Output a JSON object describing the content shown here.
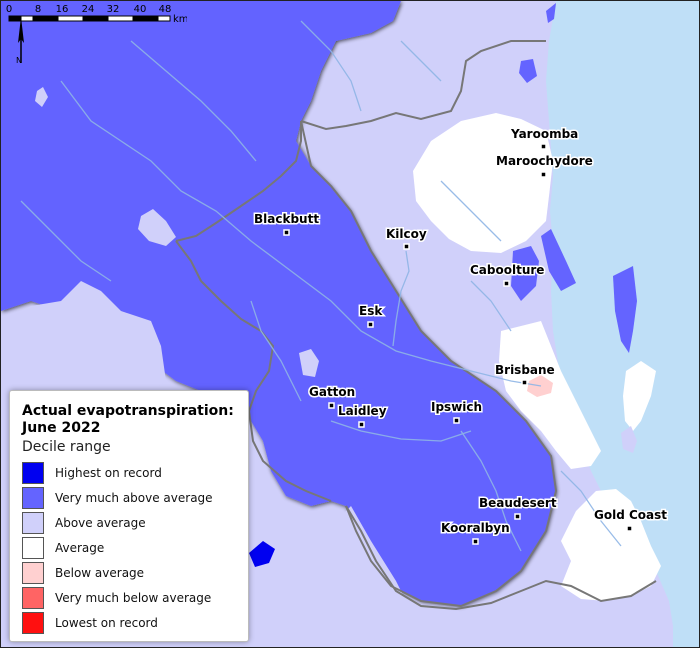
{
  "legend": {
    "title": "Actual evapotranspiration: June 2022",
    "subtitle": "Decile range",
    "items": [
      {
        "label": "Highest on record",
        "color": "#0000f0"
      },
      {
        "label": "Very much above average",
        "color": "#6464ff"
      },
      {
        "label": "Above average",
        "color": "#d0d0fa"
      },
      {
        "label": "Average",
        "color": "#ffffff"
      },
      {
        "label": "Below average",
        "color": "#ffd0d0"
      },
      {
        "label": "Very much below average",
        "color": "#ff6464"
      },
      {
        "label": "Lowest on record",
        "color": "#ff1010"
      }
    ]
  },
  "north_arrow": {
    "label": "N"
  },
  "towns": [
    {
      "name": "Yaroomba"
    },
    {
      "name": "Maroochydore"
    },
    {
      "name": "Blackbutt"
    },
    {
      "name": "Kilcoy"
    },
    {
      "name": "Caboolture"
    },
    {
      "name": "Esk"
    },
    {
      "name": "Brisbane"
    },
    {
      "name": "Gatton"
    },
    {
      "name": "Laidley"
    },
    {
      "name": "Ipswich"
    },
    {
      "name": "Beaudesert"
    },
    {
      "name": "Gold Coast"
    },
    {
      "name": "Kooralbyn"
    }
  ],
  "scale": {
    "ticks": [
      "0",
      "8",
      "16",
      "24",
      "32",
      "40",
      "48"
    ],
    "unit": "km"
  },
  "colors": {
    "ocean": "#bfdff7",
    "very_much_above": "#6464ff",
    "above": "#d0d0fa",
    "average": "#ffffff",
    "below": "#ffd0d0",
    "highest": "#0000f0",
    "river": "#8fb5e6"
  }
}
